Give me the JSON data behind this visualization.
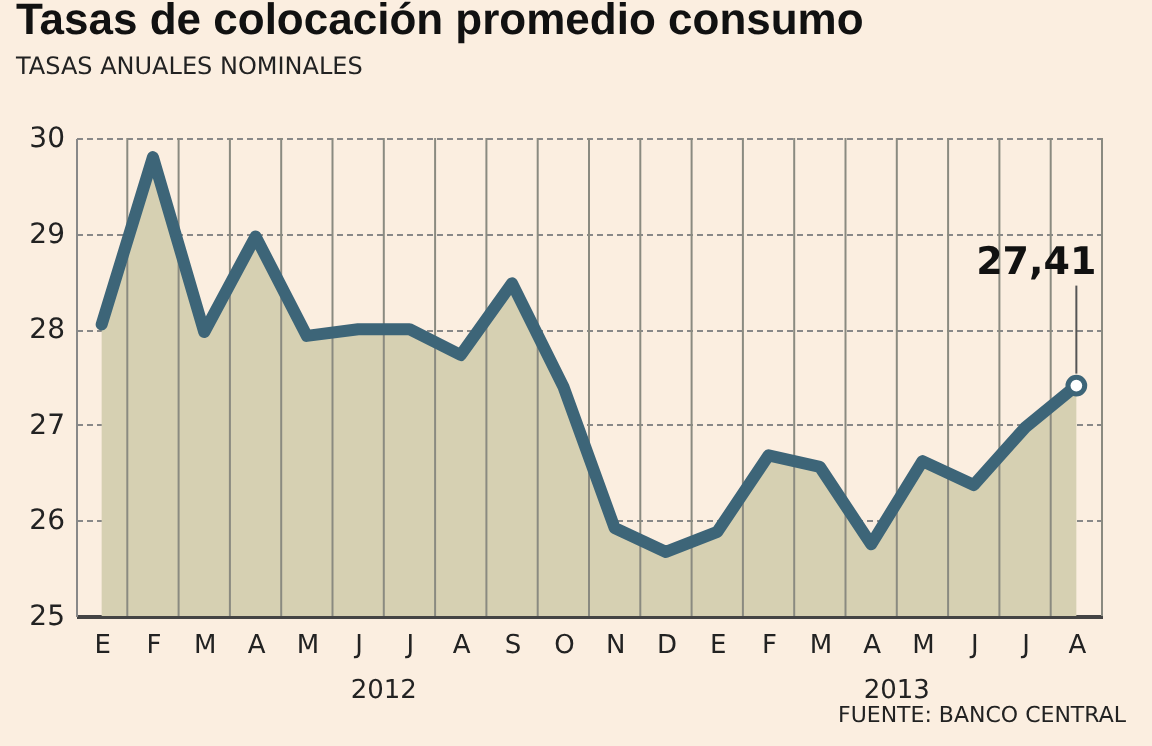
{
  "chart_data": {
    "type": "area",
    "title": "Tasas de colocación promedio consumo",
    "subtitle": "TASAS ANUALES NOMINALES",
    "categories": [
      "E",
      "F",
      "M",
      "A",
      "M",
      "J",
      "J",
      "A",
      "S",
      "O",
      "N",
      "D",
      "E",
      "F",
      "M",
      "A",
      "M",
      "J",
      "J",
      "A"
    ],
    "series": [
      {
        "color": "#3d6578",
        "values": [
          28.05,
          29.8,
          27.97,
          28.97,
          27.93,
          28.0,
          28.0,
          27.73,
          28.48,
          27.4,
          25.92,
          25.67,
          25.88,
          26.68,
          26.56,
          25.75,
          26.62,
          26.37,
          26.97,
          27.41
        ],
        "value_labels": [
          null,
          null,
          null,
          null,
          null,
          null,
          null,
          null,
          null,
          null,
          null,
          null,
          null,
          null,
          null,
          null,
          null,
          null,
          null,
          "27,41"
        ]
      }
    ],
    "ylim": [
      25,
      30
    ],
    "yticks": [
      25,
      26,
      27,
      28,
      29,
      30
    ],
    "grid": true,
    "annotations": [
      "2012",
      "2013",
      "FUENTE: BANCO CENTRAL"
    ]
  }
}
